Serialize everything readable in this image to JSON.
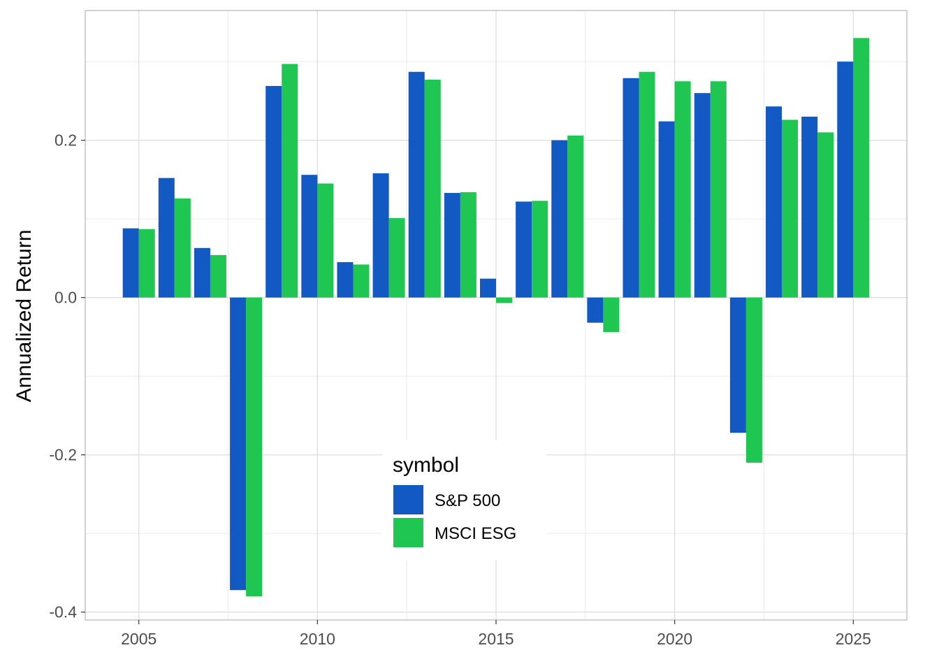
{
  "chart_data": {
    "type": "bar",
    "title": "",
    "xlabel": "",
    "ylabel": "Annualized Return",
    "xlim": [
      2003.5,
      2026.5
    ],
    "ylim": [
      -0.41,
      0.365
    ],
    "x_ticks": [
      "2005",
      "2010",
      "2015",
      "2020",
      "2025"
    ],
    "x_tick_values": [
      2005,
      2010,
      2015,
      2020,
      2025
    ],
    "y_ticks": [
      "-0.4",
      "-0.2",
      "0.0",
      "0.2"
    ],
    "y_tick_values": [
      -0.4,
      -0.2,
      0.0,
      0.2
    ],
    "grid": true,
    "legend_title": "symbol",
    "legend_position": "inside-bottom-center",
    "x": [
      2005,
      2006,
      2007,
      2008,
      2009,
      2010,
      2011,
      2012,
      2013,
      2014,
      2015,
      2016,
      2017,
      2018,
      2019,
      2020,
      2021,
      2022,
      2023,
      2024,
      2025
    ],
    "series": [
      {
        "name": "S&P 500",
        "color": "#1259c3",
        "values": [
          0.088,
          0.152,
          0.063,
          -0.372,
          0.269,
          0.156,
          0.045,
          0.158,
          0.287,
          0.133,
          0.024,
          0.122,
          0.2,
          -0.032,
          0.279,
          0.224,
          0.26,
          -0.172,
          0.243,
          0.23,
          0.3
        ]
      },
      {
        "name": "MSCI ESG",
        "color": "#1fc652",
        "values": [
          0.087,
          0.126,
          0.054,
          -0.38,
          0.297,
          0.145,
          0.042,
          0.101,
          0.277,
          0.134,
          -0.007,
          0.123,
          0.206,
          -0.044,
          0.287,
          0.275,
          0.275,
          -0.21,
          0.226,
          0.21,
          0.33
        ]
      }
    ]
  }
}
